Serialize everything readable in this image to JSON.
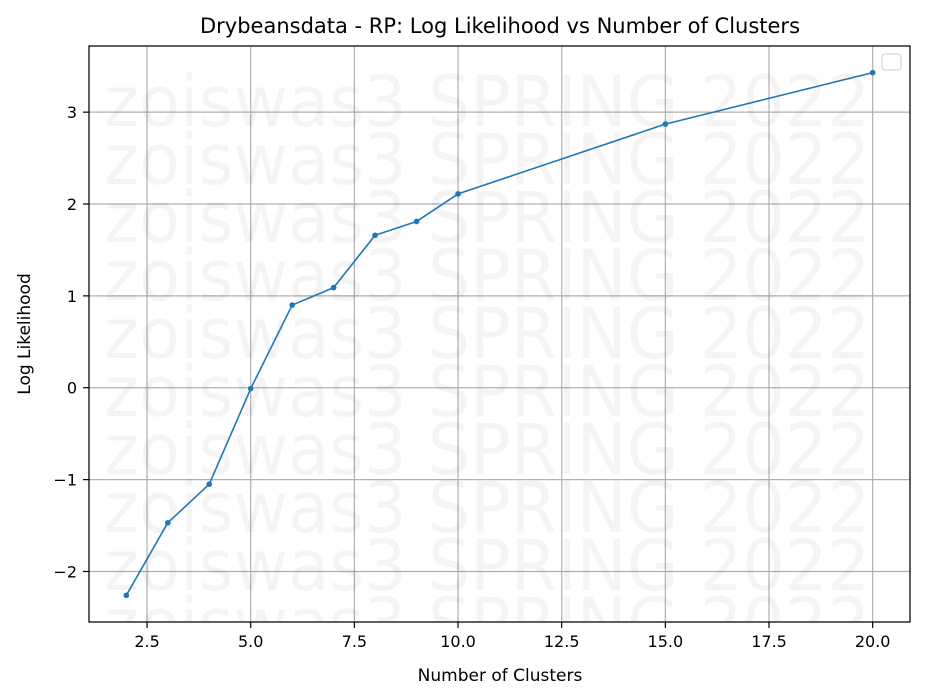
{
  "chart_data": {
    "type": "line",
    "title": "Drybeansdata - RP: Log Likelihood vs Number of Clusters",
    "xlabel": "Number of Clusters",
    "ylabel": "Log Likelihood",
    "xlim": [
      1.1,
      20.9
    ],
    "ylim": [
      -2.55,
      3.72
    ],
    "xticks": [
      2.5,
      5.0,
      7.5,
      10.0,
      12.5,
      15.0,
      17.5,
      20.0
    ],
    "xtick_labels": [
      "2.5",
      "5.0",
      "7.5",
      "10.0",
      "12.5",
      "15.0",
      "17.5",
      "20.0"
    ],
    "yticks": [
      -2,
      -1,
      0,
      1,
      2,
      3
    ],
    "ytick_labels": [
      "−2",
      "−1",
      "0",
      "1",
      "2",
      "3"
    ],
    "grid": true,
    "legend": "top-right (empty)",
    "series": [
      {
        "x": [
          2,
          3,
          4,
          5,
          6,
          7,
          8,
          9,
          10,
          15,
          20
        ],
        "values": [
          -2.26,
          -1.47,
          -1.05,
          -0.01,
          0.9,
          1.09,
          1.66,
          1.81,
          2.11,
          2.87,
          3.43
        ],
        "color": "#1f77b4"
      }
    ]
  },
  "watermark": {
    "text": "zoiswas3 SPRING 2022",
    "repeat": 10
  },
  "colors": {
    "line": "#1f77b4",
    "grid": "#b0b0b0",
    "axes": "#000000",
    "background": "#ffffff"
  }
}
